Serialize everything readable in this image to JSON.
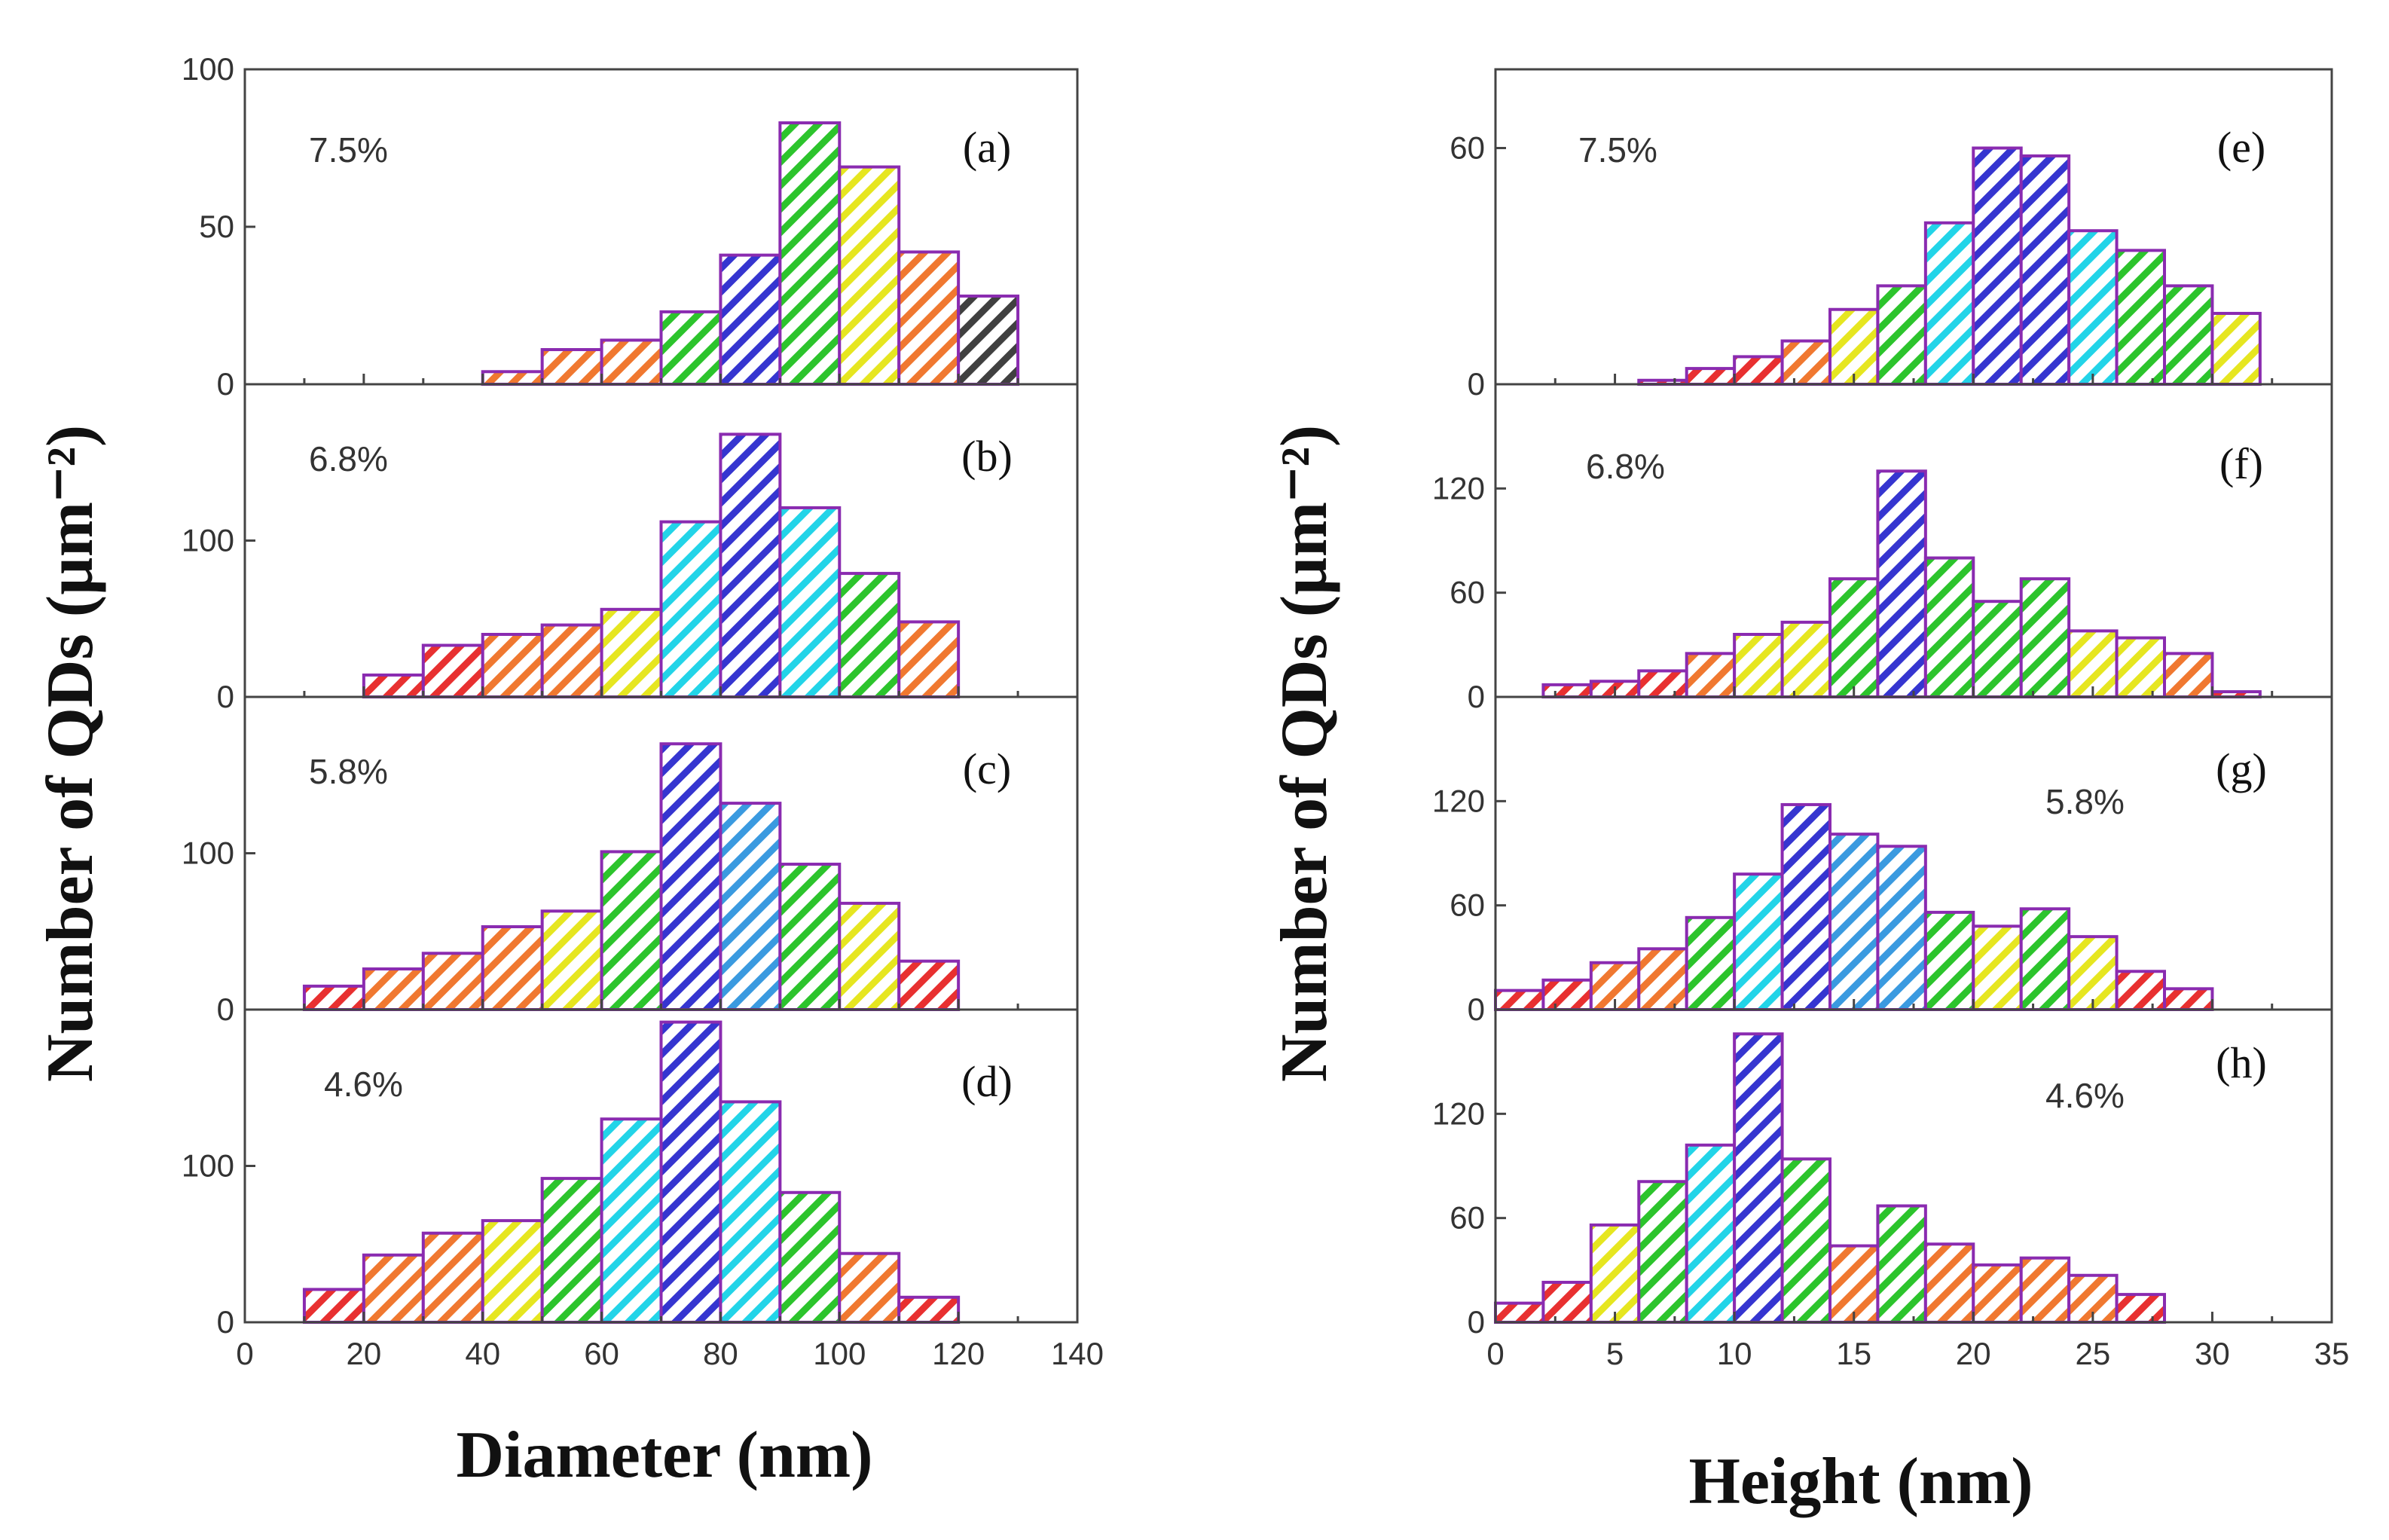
{
  "y_axis_title_left": "Number of QDs (µm⁻²)",
  "y_axis_title_right": "Number of QDs (µm⁻²)",
  "chart_data": [
    {
      "type": "bar",
      "panel": "(a)",
      "annotation": "7.5%",
      "xlabel": "Diameter (nm)",
      "ylabel": "Number of QDs (µm⁻²)",
      "xlim": [
        0,
        140
      ],
      "ylim": [
        0,
        100
      ],
      "yticks": [
        0,
        50,
        100
      ],
      "bin_width": 10,
      "x": [
        45,
        55,
        65,
        75,
        85,
        95,
        105,
        115,
        125
      ],
      "values": [
        4,
        11,
        14,
        23,
        41,
        83,
        69,
        42,
        28
      ],
      "colors": [
        "#f07830",
        "#f07830",
        "#f07830",
        "#2cc42c",
        "#3535d0",
        "#2cc42c",
        "#e6e620",
        "#f07830",
        "#404040"
      ]
    },
    {
      "type": "bar",
      "panel": "(b)",
      "annotation": "6.8%",
      "xlabel": "Diameter (nm)",
      "ylabel": "Number of QDs (µm⁻²)",
      "xlim": [
        0,
        140
      ],
      "ylim": [
        0,
        200
      ],
      "yticks": [
        0,
        100
      ],
      "bin_width": 10,
      "x": [
        25,
        35,
        45,
        55,
        65,
        75,
        85,
        95,
        105,
        115
      ],
      "values": [
        14,
        33,
        40,
        46,
        56,
        112,
        168,
        121,
        79,
        48
      ],
      "colors": [
        "#e83030",
        "#e83030",
        "#f07830",
        "#f07830",
        "#e6e620",
        "#22d4e8",
        "#3535d0",
        "#22d4e8",
        "#2cc42c",
        "#f07830"
      ]
    },
    {
      "type": "bar",
      "panel": "(c)",
      "annotation": "5.8%",
      "xlabel": "Diameter (nm)",
      "ylabel": "Number of QDs (µm⁻²)",
      "xlim": [
        0,
        140
      ],
      "ylim": [
        0,
        200
      ],
      "yticks": [
        0,
        100
      ],
      "bin_width": 10,
      "x": [
        15,
        25,
        35,
        45,
        55,
        65,
        75,
        85,
        95,
        105,
        115
      ],
      "values": [
        15,
        26,
        36,
        53,
        63,
        101,
        170,
        132,
        93,
        68,
        31
      ],
      "colors": [
        "#e83030",
        "#f07830",
        "#f07830",
        "#f07830",
        "#e6e620",
        "#2cc42c",
        "#3535d0",
        "#3a9ae0",
        "#2cc42c",
        "#e6e620",
        "#e83030"
      ]
    },
    {
      "type": "bar",
      "panel": "(d)",
      "annotation": "4.6%",
      "xlabel": "Diameter (nm)",
      "ylabel": "Number of QDs (µm⁻²)",
      "xlim": [
        0,
        140
      ],
      "ylim": [
        0,
        200
      ],
      "yticks": [
        0,
        100
      ],
      "xticks": [
        0,
        20,
        40,
        60,
        80,
        100,
        120,
        140
      ],
      "bin_width": 10,
      "x": [
        15,
        25,
        35,
        45,
        55,
        65,
        75,
        85,
        95,
        105,
        115
      ],
      "values": [
        21,
        43,
        57,
        65,
        92,
        130,
        192,
        141,
        83,
        44,
        16
      ],
      "colors": [
        "#e83030",
        "#f07830",
        "#f07830",
        "#e6e620",
        "#2cc42c",
        "#22d4e8",
        "#3535d0",
        "#22d4e8",
        "#2cc42c",
        "#f07830",
        "#e83030"
      ]
    },
    {
      "type": "bar",
      "panel": "(e)",
      "annotation": "7.5%",
      "xlabel": "Height (nm)",
      "ylabel": "Number of QDs (µm⁻²)",
      "xlim": [
        0,
        35
      ],
      "ylim": [
        0,
        80
      ],
      "yticks": [
        0,
        60
      ],
      "bin_width": 2,
      "x": [
        7,
        9,
        11,
        13,
        15,
        17,
        19,
        21,
        23,
        25,
        27,
        29,
        31
      ],
      "values": [
        1,
        4,
        7,
        11,
        19,
        25,
        41,
        60,
        58,
        39,
        34,
        25,
        18
      ],
      "colors": [
        "#e83030",
        "#e83030",
        "#e83030",
        "#f07830",
        "#e6e620",
        "#2cc42c",
        "#22d4e8",
        "#3535d0",
        "#3535d0",
        "#22d4e8",
        "#2cc42c",
        "#2cc42c",
        "#e6e620"
      ]
    },
    {
      "type": "bar",
      "panel": "(f)",
      "annotation": "6.8%",
      "xlabel": "Height (nm)",
      "ylabel": "Number of QDs (µm⁻²)",
      "xlim": [
        0,
        35
      ],
      "ylim": [
        0,
        180
      ],
      "yticks": [
        0,
        60,
        120
      ],
      "bin_width": 2,
      "x": [
        3,
        5,
        7,
        9,
        11,
        13,
        15,
        17,
        19,
        21,
        23,
        25,
        27,
        29,
        31
      ],
      "values": [
        7,
        9,
        15,
        25,
        36,
        43,
        68,
        130,
        80,
        55,
        68,
        38,
        34,
        25,
        3
      ],
      "colors": [
        "#e83030",
        "#e83030",
        "#e83030",
        "#f07830",
        "#e6e620",
        "#e6e620",
        "#2cc42c",
        "#3535d0",
        "#2cc42c",
        "#2cc42c",
        "#2cc42c",
        "#e6e620",
        "#e6e620",
        "#f07830",
        "#e83030"
      ]
    },
    {
      "type": "bar",
      "panel": "(g)",
      "annotation": "5.8%",
      "xlabel": "Height (nm)",
      "ylabel": "Number of QDs (µm⁻²)",
      "xlim": [
        0,
        35
      ],
      "ylim": [
        0,
        180
      ],
      "yticks": [
        0,
        60,
        120
      ],
      "bin_width": 2,
      "x": [
        1,
        3,
        5,
        7,
        9,
        11,
        13,
        15,
        17,
        19,
        21,
        23,
        25,
        27,
        29
      ],
      "values": [
        11,
        17,
        27,
        35,
        53,
        78,
        118,
        101,
        94,
        56,
        48,
        58,
        42,
        22,
        12
      ],
      "colors": [
        "#e83030",
        "#e83030",
        "#f07830",
        "#f07830",
        "#2cc42c",
        "#22d4e8",
        "#3535d0",
        "#3a9ae0",
        "#3a9ae0",
        "#2cc42c",
        "#e6e620",
        "#2cc42c",
        "#e6e620",
        "#e83030",
        "#e83030"
      ]
    },
    {
      "type": "bar",
      "panel": "(h)",
      "annotation": "4.6%",
      "xlabel": "Height (nm)",
      "ylabel": "Number of QDs (µm⁻²)",
      "xlim": [
        0,
        35
      ],
      "ylim": [
        0,
        180
      ],
      "yticks": [
        0,
        60,
        120
      ],
      "xticks": [
        0,
        5,
        10,
        15,
        20,
        25,
        30,
        35
      ],
      "bin_width": 2,
      "x": [
        1,
        3,
        5,
        7,
        9,
        11,
        13,
        15,
        17,
        19,
        21,
        23,
        25,
        27
      ],
      "values": [
        11,
        23,
        56,
        81,
        102,
        166,
        94,
        44,
        67,
        45,
        33,
        37,
        27,
        16
      ],
      "colors": [
        "#e83030",
        "#e83030",
        "#e6e620",
        "#2cc42c",
        "#22d4e8",
        "#3535d0",
        "#2cc42c",
        "#f07830",
        "#2cc42c",
        "#f07830",
        "#f07830",
        "#f07830",
        "#f07830",
        "#e83030"
      ]
    }
  ]
}
